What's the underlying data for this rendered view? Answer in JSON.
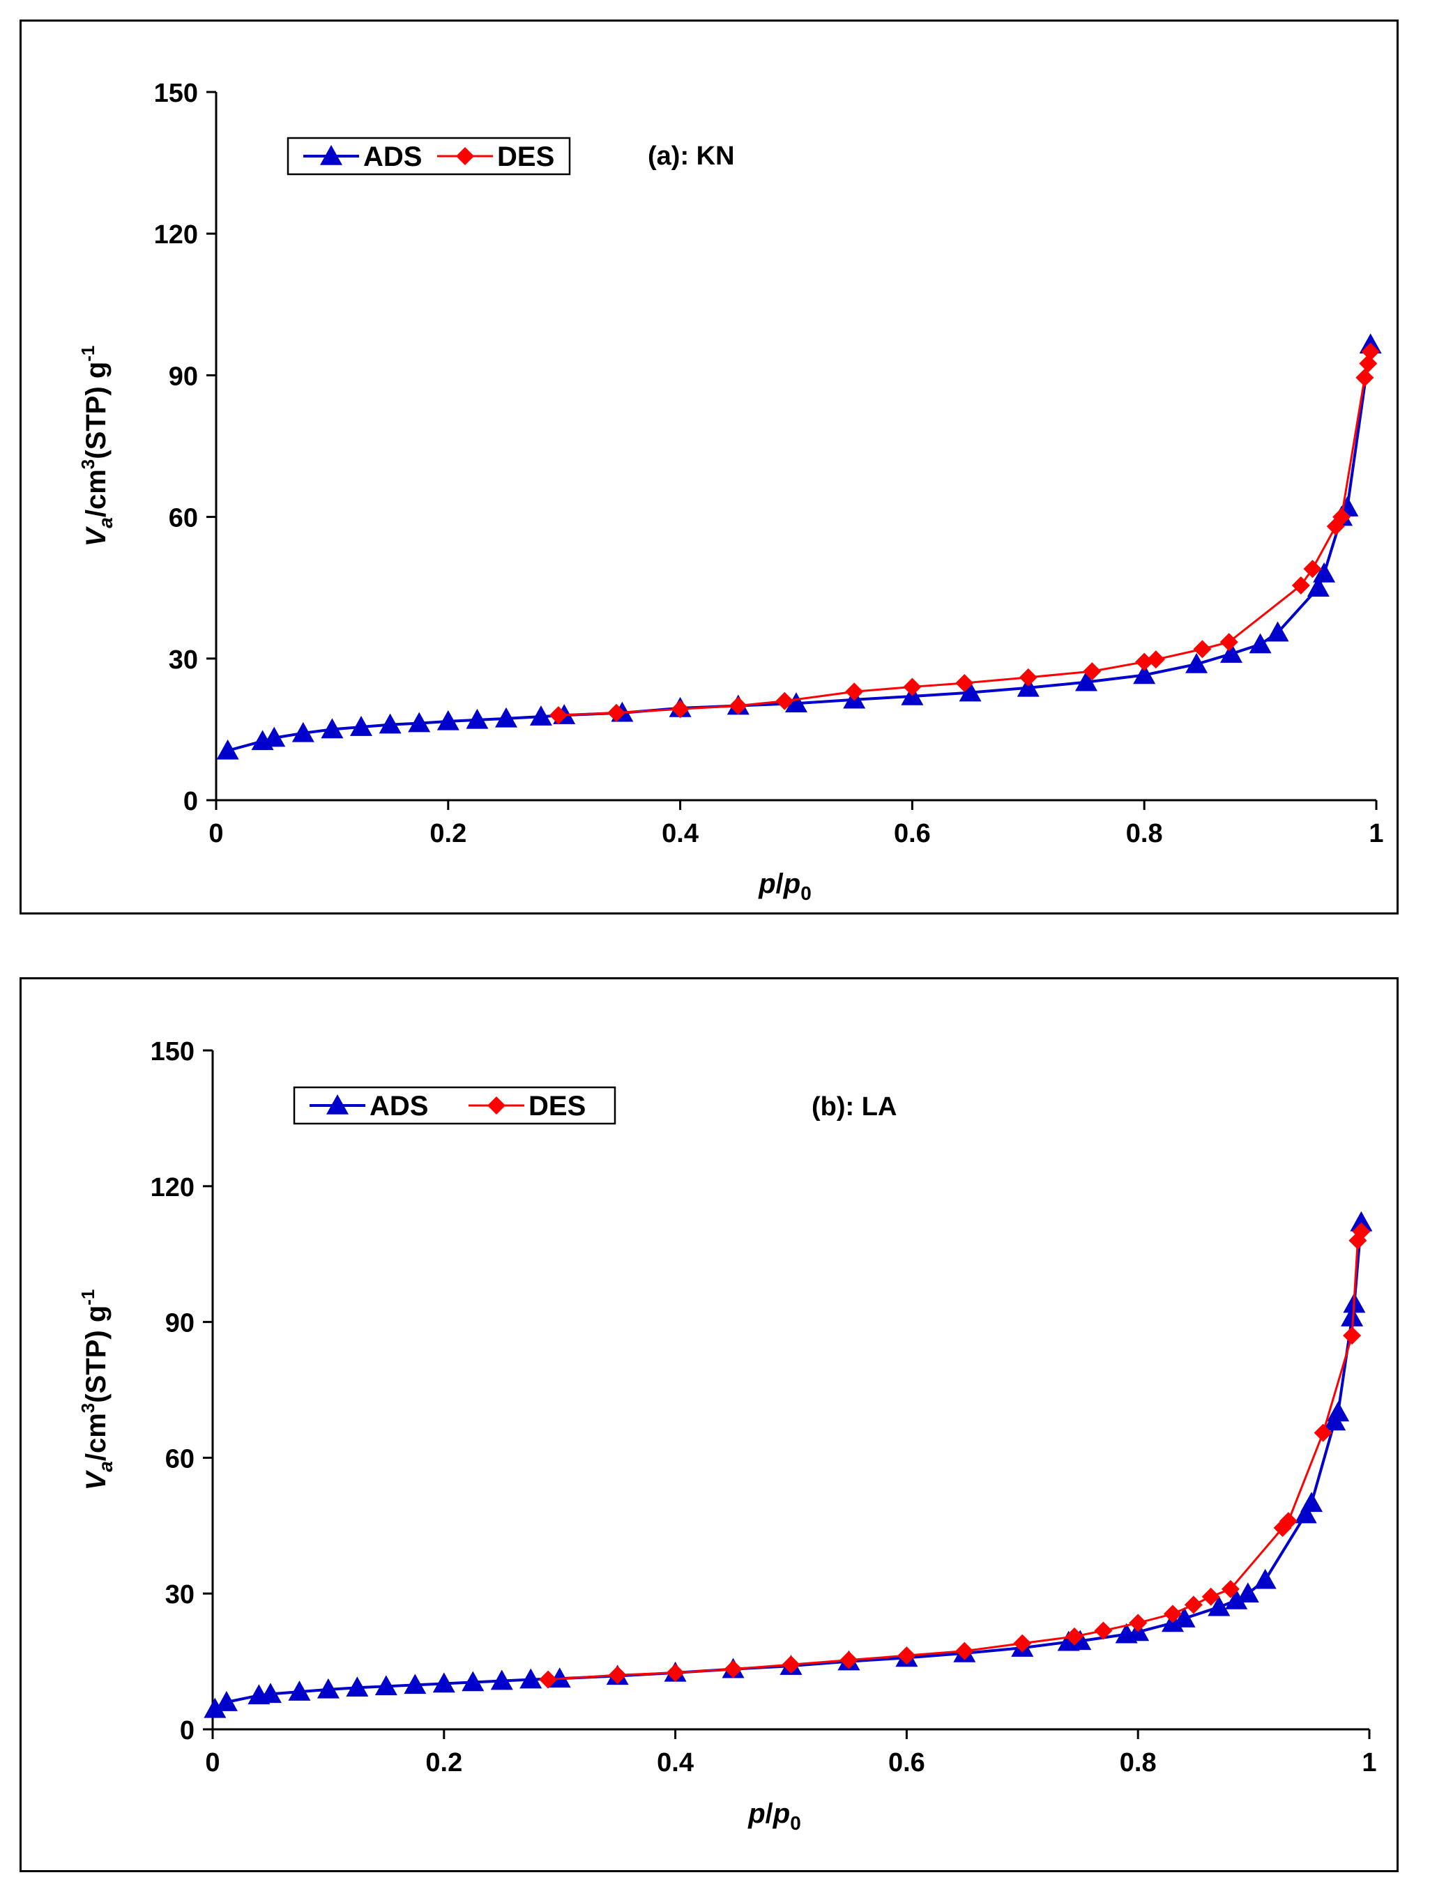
{
  "colors": {
    "ads": "#0000CC",
    "des": "#FF0000",
    "axis": "#000000"
  },
  "chart_data": [
    {
      "type": "line",
      "title": "(a): KN",
      "xlabel_main": "p",
      "xlabel_slash": "/",
      "xlabel_p": "p",
      "xlabel_sub": "0",
      "ylabel_v": "V",
      "ylabel_a": "a",
      "ylabel_unit": "/cm",
      "ylabel_3": "3",
      "ylabel_stp": "(STP) g",
      "ylabel_neg1": "-1",
      "xlim": [
        0,
        1
      ],
      "ylim": [
        0,
        150
      ],
      "xticks": [
        "0",
        "0.2",
        "0.4",
        "0.6",
        "0.8",
        "1"
      ],
      "yticks": [
        "0",
        "30",
        "60",
        "90",
        "120",
        "150"
      ],
      "legend": [
        "ADS",
        "DES"
      ],
      "series": [
        {
          "name": "ADS",
          "marker": "triangle",
          "x": [
            0.01,
            0.04,
            0.05,
            0.075,
            0.1,
            0.125,
            0.15,
            0.175,
            0.2,
            0.225,
            0.25,
            0.28,
            0.3,
            0.35,
            0.4,
            0.45,
            0.5,
            0.55,
            0.6,
            0.65,
            0.7,
            0.75,
            0.8,
            0.845,
            0.875,
            0.9,
            0.915,
            0.95,
            0.955,
            0.97,
            0.975,
            0.995
          ],
          "y": [
            10.5,
            12.5,
            13.2,
            14.2,
            15,
            15.5,
            16,
            16.3,
            16.7,
            17,
            17.3,
            17.7,
            18,
            18.5,
            19.5,
            20,
            20.5,
            21.3,
            22,
            22.8,
            23.8,
            25,
            26.5,
            28.8,
            31,
            33,
            35.5,
            45,
            48,
            60,
            62,
            96.5
          ]
        },
        {
          "name": "DES",
          "marker": "diamond",
          "x": [
            0.995,
            0.993,
            0.99,
            0.97,
            0.965,
            0.945,
            0.935,
            0.873,
            0.85,
            0.81,
            0.8,
            0.755,
            0.7,
            0.645,
            0.6,
            0.55,
            0.49,
            0.45,
            0.4,
            0.345,
            0.295
          ],
          "y": [
            95,
            92.5,
            89.5,
            60,
            58,
            49,
            45.5,
            33.5,
            32,
            29.8,
            29.3,
            27.3,
            26,
            24.8,
            24,
            23,
            21,
            20,
            19.3,
            18.5,
            18
          ]
        }
      ]
    },
    {
      "type": "line",
      "title": "(b): LA",
      "xlabel_main": "p",
      "xlabel_slash": "/",
      "xlabel_p": "p",
      "xlabel_sub": "0",
      "ylabel_v": "V",
      "ylabel_a": "a",
      "ylabel_unit": "/cm",
      "ylabel_3": "3",
      "ylabel_stp": "(STP) g",
      "ylabel_neg1": "-1",
      "xlim": [
        0,
        1
      ],
      "ylim": [
        0,
        150
      ],
      "xticks": [
        "0",
        "0.2",
        "0.4",
        "0.6",
        "0.8",
        "1"
      ],
      "yticks": [
        "0",
        "30",
        "60",
        "90",
        "120",
        "150"
      ],
      "legend": [
        "ADS",
        "DES"
      ],
      "series": [
        {
          "name": "ADS",
          "marker": "triangle",
          "x": [
            0.002,
            0.012,
            0.04,
            0.05,
            0.075,
            0.1,
            0.125,
            0.15,
            0.175,
            0.2,
            0.225,
            0.25,
            0.275,
            0.3,
            0.35,
            0.4,
            0.45,
            0.5,
            0.55,
            0.6,
            0.65,
            0.7,
            0.74,
            0.75,
            0.79,
            0.8,
            0.83,
            0.84,
            0.87,
            0.885,
            0.895,
            0.91,
            0.945,
            0.95,
            0.97,
            0.973,
            0.985,
            0.987,
            0.993
          ],
          "y": [
            4.5,
            6,
            7.5,
            7.8,
            8.3,
            8.8,
            9.2,
            9.5,
            9.8,
            10.1,
            10.4,
            10.7,
            11,
            11.2,
            11.8,
            12.5,
            13.3,
            14,
            15,
            15.8,
            16.8,
            18,
            19.3,
            19.5,
            21,
            21.5,
            23.5,
            24.5,
            27,
            28.5,
            30,
            33,
            47.5,
            50,
            68,
            70,
            91,
            94,
            112
          ]
        },
        {
          "name": "DES",
          "marker": "diamond",
          "x": [
            0.993,
            0.99,
            0.985,
            0.96,
            0.93,
            0.925,
            0.88,
            0.863,
            0.848,
            0.83,
            0.8,
            0.77,
            0.745,
            0.7,
            0.65,
            0.6,
            0.55,
            0.5,
            0.45,
            0.4,
            0.35,
            0.29
          ],
          "y": [
            110,
            108,
            87,
            65.5,
            46,
            44.5,
            31,
            29.3,
            27.5,
            25.5,
            23.5,
            21.8,
            20.5,
            19,
            17.3,
            16.3,
            15.3,
            14.3,
            13.3,
            12.5,
            12,
            11
          ]
        }
      ]
    }
  ]
}
